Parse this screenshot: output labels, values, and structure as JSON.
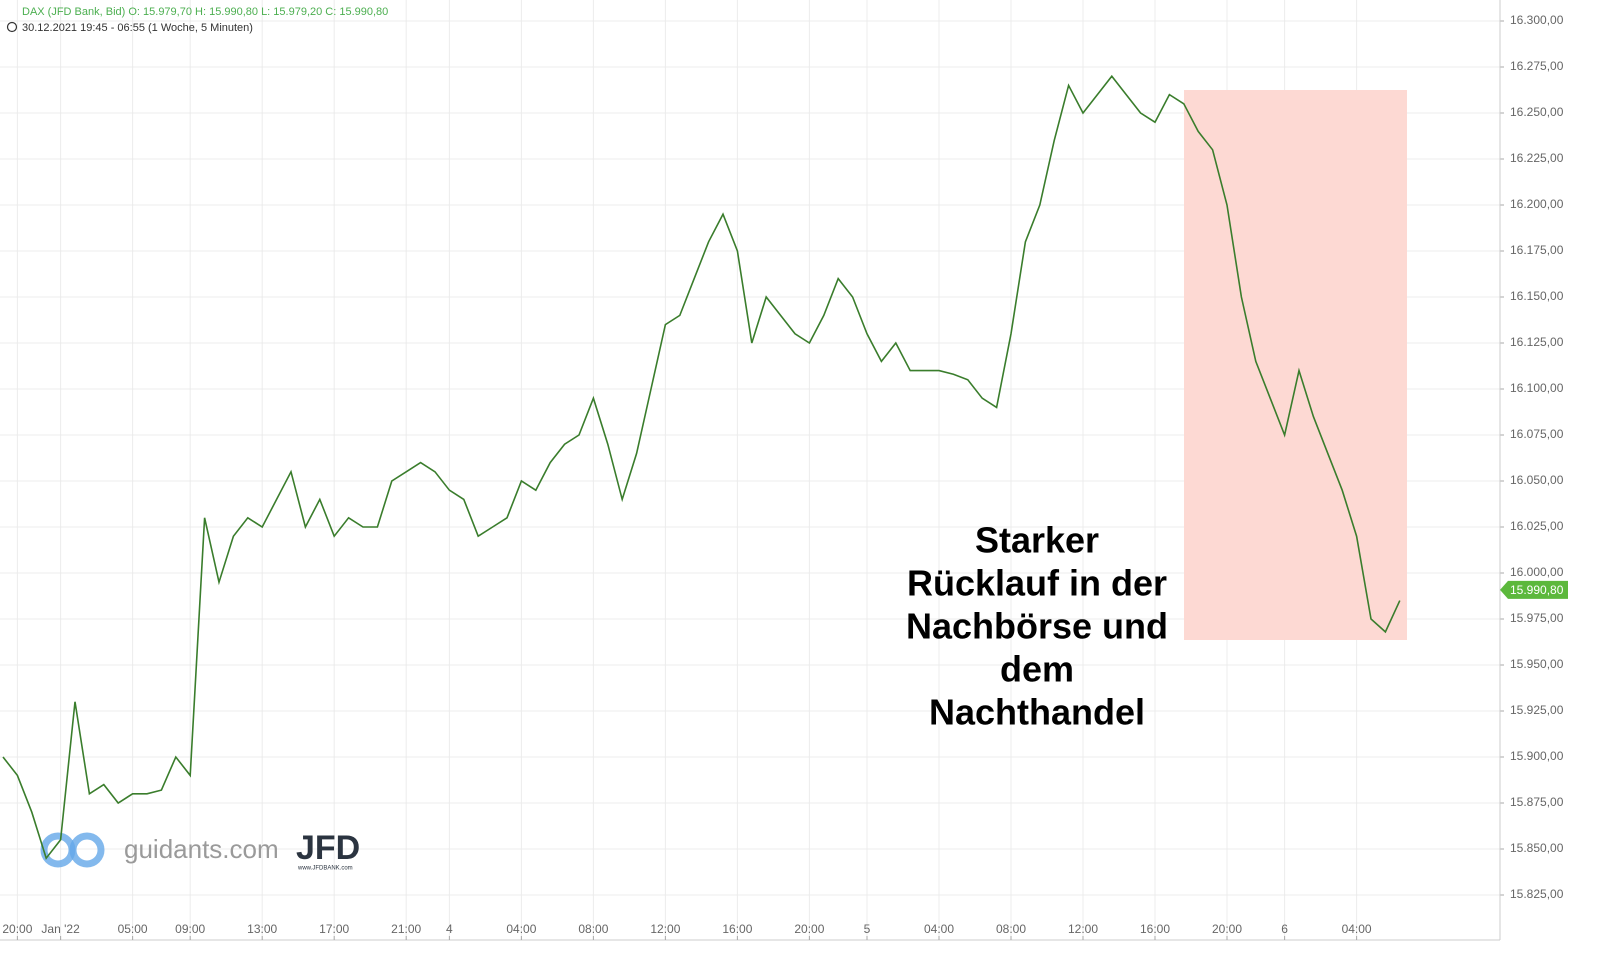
{
  "chart_data": {
    "type": "line",
    "title": "DAX (JFD Bank, Bid)  O: 15.979,70  H: 15.990,80  L: 15.979,20  C: 15.990,80",
    "subtitle": "30.12.2021 19:45 - 06:55   (1 Woche, 5 Minuten)",
    "annotation": [
      "Starker",
      "Rücklauf in der",
      "Nachbörse und",
      "dem",
      "Nachthandel"
    ],
    "watermark": {
      "site": "guidants.com",
      "brand": "JFD",
      "url": "www.JFDBANK.com"
    },
    "categories": [
      null,
      "20:00",
      null,
      null,
      "Jan '22",
      null,
      null,
      null,
      null,
      "05:00",
      null,
      null,
      null,
      "09:00",
      null,
      null,
      null,
      null,
      "13:00",
      null,
      null,
      null,
      null,
      "17:00",
      null,
      null,
      null,
      null,
      "21:00",
      null,
      null,
      "4",
      null,
      null,
      null,
      null,
      "04:00",
      null,
      null,
      null,
      null,
      "08:00",
      null,
      null,
      null,
      null,
      "12:00",
      null,
      null,
      null,
      null,
      "16:00",
      null,
      null,
      null,
      null,
      "20:00",
      null,
      null,
      null,
      "5",
      null,
      null,
      null,
      null,
      "04:00",
      null,
      null,
      null,
      null,
      "08:00",
      null,
      null,
      null,
      null,
      "12:00",
      null,
      null,
      null,
      null,
      "16:00",
      null,
      null,
      null,
      null,
      "20:00",
      null,
      null,
      null,
      "6",
      null,
      null,
      null,
      null,
      "04:00",
      null,
      null,
      null
    ],
    "series": [
      {
        "name": "DAX",
        "color": "#3a7d2c",
        "values": [
          15900,
          15890,
          15870,
          15845,
          15855,
          15930,
          15880,
          15885,
          15875,
          15880,
          15880,
          15882,
          15900,
          15890,
          16030,
          15995,
          16020,
          16030,
          16025,
          16040,
          16055,
          16025,
          16040,
          16020,
          16030,
          16025,
          16025,
          16050,
          16055,
          16060,
          16055,
          16045,
          16040,
          16020,
          16025,
          16030,
          16050,
          16045,
          16060,
          16070,
          16075,
          16095,
          16070,
          16040,
          16065,
          16100,
          16135,
          16140,
          16160,
          16180,
          16195,
          16175,
          16125,
          16150,
          16140,
          16130,
          16125,
          16140,
          16160,
          16150,
          16130,
          16115,
          16125,
          16110,
          16110,
          16110,
          16108,
          16105,
          16095,
          16090,
          16130,
          16180,
          16200,
          16235,
          16265,
          16250,
          16260,
          16270,
          16260,
          16250,
          16245,
          16260,
          16255,
          16240,
          16230,
          16200,
          16150,
          16115,
          16095,
          16075,
          16110,
          16085,
          16065,
          16045,
          16020,
          15975,
          15968,
          15985
        ]
      }
    ],
    "last_price": {
      "value": 15990.8,
      "label": "15.990,80"
    },
    "ylim": [
      15815,
      16311
    ],
    "yticks": [
      {
        "value": 15825,
        "label": "15.825,00"
      },
      {
        "value": 15850,
        "label": "15.850,00"
      },
      {
        "value": 15875,
        "label": "15.875,00"
      },
      {
        "value": 15900,
        "label": "15.900,00"
      },
      {
        "value": 15925,
        "label": "15.925,00"
      },
      {
        "value": 15950,
        "label": "15.950,00"
      },
      {
        "value": 15975,
        "label": "15.975,00"
      },
      {
        "value": 16000,
        "label": "16.000,00"
      },
      {
        "value": 16025,
        "label": "16.025,00"
      },
      {
        "value": 16050,
        "label": "16.050,00"
      },
      {
        "value": 16075,
        "label": "16.075,00"
      },
      {
        "value": 16100,
        "label": "16.100,00"
      },
      {
        "value": 16125,
        "label": "16.125,00"
      },
      {
        "value": 16150,
        "label": "16.150,00"
      },
      {
        "value": 16175,
        "label": "16.175,00"
      },
      {
        "value": 16200,
        "label": "16.200,00"
      },
      {
        "value": 16225,
        "label": "16.225,00"
      },
      {
        "value": 16250,
        "label": "16.250,00"
      },
      {
        "value": 16275,
        "label": "16.275,00"
      },
      {
        "value": 16300,
        "label": "16.300,00"
      }
    ],
    "grid": true
  }
}
